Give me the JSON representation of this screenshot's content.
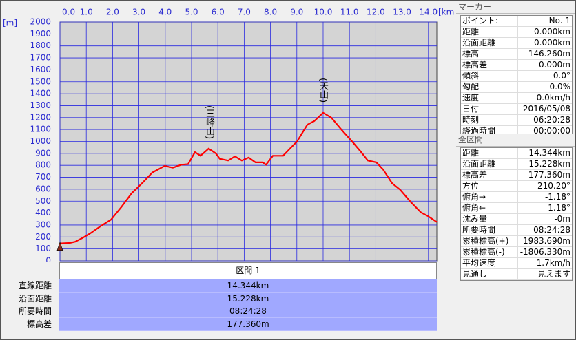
{
  "chart_data": {
    "type": "line",
    "y_label": "[m]",
    "x_label": "[km]",
    "x": [
      0,
      0.37,
      0.58,
      0.84,
      1.15,
      1.54,
      1.94,
      2.33,
      2.72,
      3.12,
      3.51,
      3.98,
      4.29,
      4.61,
      4.87,
      5.13,
      5.34,
      5.65,
      5.92,
      6.07,
      6.39,
      6.65,
      6.91,
      7.17,
      7.43,
      7.7,
      7.83,
      8.09,
      8.48,
      8.74,
      9.01,
      9.4,
      9.66,
      10.0,
      10.31,
      10.71,
      11.1,
      11.41,
      11.7,
      12.02,
      12.28,
      12.62,
      12.93,
      13.32,
      13.72,
      13.98,
      14.32
    ],
    "series": [
      {
        "name": "標高",
        "color": "#ff0000",
        "values": [
          146,
          150,
          160,
          190,
          230,
          290,
          345,
          450,
          565,
          650,
          740,
          795,
          780,
          805,
          810,
          910,
          880,
          940,
          900,
          855,
          840,
          875,
          840,
          865,
          825,
          825,
          805,
          880,
          880,
          940,
          1000,
          1140,
          1170,
          1240,
          1200,
          1095,
          1000,
          920,
          840,
          825,
          765,
          650,
          595,
          495,
          405,
          375,
          325
        ]
      }
    ],
    "xlim": [
      0,
      14.32
    ],
    "xticks": [
      {
        "value": 0,
        "label": "0.0"
      },
      {
        "value": 1,
        "label": "1.0"
      },
      {
        "value": 2,
        "label": "2.0"
      },
      {
        "value": 3,
        "label": "3.0"
      },
      {
        "value": 4,
        "label": "4.0"
      },
      {
        "value": 5,
        "label": "5.0"
      },
      {
        "value": 6,
        "label": "6.0"
      },
      {
        "value": 7,
        "label": "7.0"
      },
      {
        "value": 8,
        "label": "8.0"
      },
      {
        "value": 9,
        "label": "9.0"
      },
      {
        "value": 10,
        "label": "10.0"
      },
      {
        "value": 11,
        "label": "11.0"
      },
      {
        "value": 12,
        "label": "12.0"
      },
      {
        "value": 13,
        "label": "13.0"
      },
      {
        "value": 14,
        "label": "14.0"
      }
    ],
    "ylim": [
      0,
      2000
    ],
    "yticks": [
      0,
      100,
      200,
      300,
      400,
      500,
      600,
      700,
      800,
      900,
      1000,
      1100,
      1200,
      1300,
      1400,
      1500,
      1600,
      1700,
      1800,
      1900,
      2000
    ],
    "grid": true,
    "annotations": [
      "(三峰山)",
      "(天山)"
    ]
  },
  "marker_panel": {
    "title": "マーカー",
    "rows": [
      [
        "ポイント:",
        "No. 1"
      ],
      [
        "距離",
        "0.000km"
      ],
      [
        "沿面距離",
        "0.000km"
      ],
      [
        "標高",
        "146.260m"
      ],
      [
        "標高差",
        "0.000m"
      ],
      [
        "傾斜",
        "0.0°"
      ],
      [
        "勾配",
        "0.0%"
      ],
      [
        "速度",
        "0.0km/h"
      ],
      [
        "日付",
        "2016/05/08"
      ],
      [
        "時刻",
        "06:20:28"
      ],
      [
        "経過時間",
        "00:00:00"
      ]
    ]
  },
  "total_panel": {
    "title": "全区間",
    "rows": [
      [
        "距離",
        "14.344km"
      ],
      [
        "沿面距離",
        "15.228km"
      ],
      [
        "標高差",
        "177.360m"
      ],
      [
        "方位",
        "210.20°"
      ],
      [
        "俯角→",
        "-1.18°"
      ],
      [
        "俯角←",
        "1.18°"
      ],
      [
        "沈み量",
        "-0m"
      ],
      [
        "所要時間",
        "08:24:28"
      ],
      [
        "累積標高(+)",
        "1983.690m"
      ],
      [
        "累積標高(-)",
        "-1806.330m"
      ],
      [
        "平均速度",
        "1.7km/h"
      ],
      [
        "見通し",
        "見えます"
      ]
    ]
  },
  "section_table": {
    "header": "区間 1",
    "rows": [
      [
        "直線距離",
        "14.344km"
      ],
      [
        "沿面距離",
        "15.228km"
      ],
      [
        "所要時間",
        "08:24:28"
      ],
      [
        "標高差",
        "177.360m"
      ]
    ]
  }
}
